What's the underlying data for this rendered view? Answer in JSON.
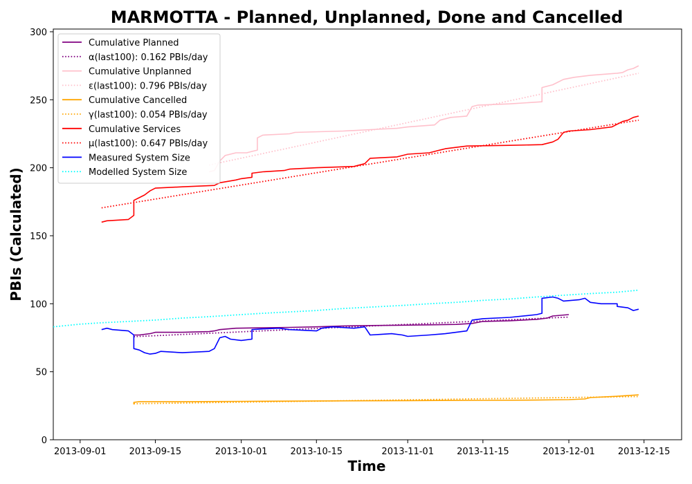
{
  "chart_data": {
    "type": "line",
    "title": "MARMOTTA - Planned, Unplanned, Done  and Cancelled",
    "xlabel": "Time",
    "ylabel": "PBIs (Calculated)",
    "xlim": [
      "2013-08-27",
      "2013-12-22"
    ],
    "ylim": [
      0,
      302
    ],
    "x_ticks": [
      "2013-09-01",
      "2013-09-15",
      "2013-10-01",
      "2013-10-15",
      "2013-11-01",
      "2013-11-15",
      "2013-12-01",
      "2013-12-15"
    ],
    "y_ticks": [
      0,
      50,
      100,
      150,
      200,
      250,
      300
    ],
    "grid": false,
    "legend_position": "upper left",
    "series": [
      {
        "name": "Cumulative Planned",
        "style": "solid",
        "color": "#800080",
        "points": [
          [
            "2013-09-11",
            77
          ],
          [
            "2013-09-12",
            77
          ],
          [
            "2013-09-14",
            78
          ],
          [
            "2013-09-15",
            79
          ],
          [
            "2013-09-20",
            79
          ],
          [
            "2013-09-25",
            79.5
          ],
          [
            "2013-09-26",
            80
          ],
          [
            "2013-09-27",
            81
          ],
          [
            "2013-09-30",
            82
          ],
          [
            "2013-10-05",
            82.3
          ],
          [
            "2013-10-10",
            82.6
          ],
          [
            "2013-10-15",
            83
          ],
          [
            "2013-10-20",
            83.7
          ],
          [
            "2013-10-25",
            84
          ],
          [
            "2013-10-30",
            84.2
          ],
          [
            "2013-11-05",
            84.5
          ],
          [
            "2013-11-10",
            84.8
          ],
          [
            "2013-11-13",
            85.5
          ],
          [
            "2013-11-15",
            87
          ],
          [
            "2013-11-20",
            87.5
          ],
          [
            "2013-11-25",
            88.5
          ],
          [
            "2013-11-27",
            89.5
          ],
          [
            "2013-11-28",
            91
          ],
          [
            "2013-12-01",
            92
          ]
        ]
      },
      {
        "name": "α(last100): 0.162 PBIs/day",
        "style": "dotted",
        "color": "#800080",
        "points": [
          [
            "2013-09-11",
            75.8
          ],
          [
            "2013-12-01",
            90.2
          ]
        ]
      },
      {
        "name": "Cumulative Unplanned",
        "style": "solid",
        "color": "#ffc0cb",
        "points": [
          [
            "2013-09-25",
            197
          ],
          [
            "2013-09-26",
            198
          ],
          [
            "2013-09-27",
            205
          ],
          [
            "2013-09-28",
            209
          ],
          [
            "2013-09-30",
            211
          ],
          [
            "2013-10-02",
            211
          ],
          [
            "2013-10-03",
            212
          ],
          [
            "2013-10-04",
            213
          ],
          [
            "2013-10-04",
            222
          ],
          [
            "2013-10-05",
            224
          ],
          [
            "2013-10-10",
            225
          ],
          [
            "2013-10-11",
            226
          ],
          [
            "2013-10-20",
            227
          ],
          [
            "2013-10-25",
            228
          ],
          [
            "2013-10-30",
            229
          ],
          [
            "2013-11-01",
            230
          ],
          [
            "2013-11-06",
            231.5
          ],
          [
            "2013-11-07",
            235
          ],
          [
            "2013-11-09",
            237
          ],
          [
            "2013-11-12",
            238
          ],
          [
            "2013-11-13",
            245
          ],
          [
            "2013-11-14",
            246
          ],
          [
            "2013-11-20",
            247
          ],
          [
            "2013-11-26",
            248.5
          ],
          [
            "2013-11-26",
            259
          ],
          [
            "2013-11-28",
            261
          ],
          [
            "2013-11-30",
            265
          ],
          [
            "2013-12-02",
            266.5
          ],
          [
            "2013-12-05",
            268
          ],
          [
            "2013-12-10",
            269.5
          ],
          [
            "2013-12-11",
            270
          ],
          [
            "2013-12-12",
            272
          ],
          [
            "2013-12-13",
            273
          ],
          [
            "2013-12-14",
            275
          ]
        ]
      },
      {
        "name": "ε(last100): 0.796 PBIs/day",
        "style": "dotted",
        "color": "#ffc0cb",
        "points": [
          [
            "2013-09-25",
            202
          ],
          [
            "2013-12-14",
            269.5
          ]
        ]
      },
      {
        "name": "Cumulative Cancelled",
        "style": "solid",
        "color": "#ffa500",
        "points": [
          [
            "2013-09-11",
            26
          ],
          [
            "2013-09-11",
            27.5
          ],
          [
            "2013-09-12",
            28
          ],
          [
            "2013-09-20",
            28
          ],
          [
            "2013-10-01",
            28.2
          ],
          [
            "2013-10-15",
            28.5
          ],
          [
            "2013-11-01",
            28.8
          ],
          [
            "2013-11-15",
            29
          ],
          [
            "2013-11-25",
            29.2
          ],
          [
            "2013-12-01",
            29.5
          ],
          [
            "2013-12-04",
            30
          ],
          [
            "2013-12-05",
            31
          ],
          [
            "2013-12-10",
            32
          ],
          [
            "2013-12-14",
            33
          ]
        ]
      },
      {
        "name": "γ(last100): 0.054 PBIs/day",
        "style": "dotted",
        "color": "#ffa500",
        "points": [
          [
            "2013-09-11",
            26.5
          ],
          [
            "2013-12-14",
            31.8
          ]
        ]
      },
      {
        "name": "Cumulative Services",
        "style": "solid",
        "color": "#ff0000",
        "points": [
          [
            "2013-09-05",
            160
          ],
          [
            "2013-09-06",
            161
          ],
          [
            "2013-09-10",
            162
          ],
          [
            "2013-09-11",
            165
          ],
          [
            "2013-09-11",
            176
          ],
          [
            "2013-09-12",
            178
          ],
          [
            "2013-09-13",
            180
          ],
          [
            "2013-09-14",
            183
          ],
          [
            "2013-09-15",
            185
          ],
          [
            "2013-09-20",
            186
          ],
          [
            "2013-09-26",
            187
          ],
          [
            "2013-09-27",
            189
          ],
          [
            "2013-09-30",
            191
          ],
          [
            "2013-10-01",
            192
          ],
          [
            "2013-10-03",
            193
          ],
          [
            "2013-10-03",
            196
          ],
          [
            "2013-10-05",
            197
          ],
          [
            "2013-10-09",
            198
          ],
          [
            "2013-10-10",
            199
          ],
          [
            "2013-10-15",
            200
          ],
          [
            "2013-10-22",
            201
          ],
          [
            "2013-10-24",
            203
          ],
          [
            "2013-10-25",
            207
          ],
          [
            "2013-10-30",
            208
          ],
          [
            "2013-11-01",
            210
          ],
          [
            "2013-11-05",
            211
          ],
          [
            "2013-11-06",
            212
          ],
          [
            "2013-11-08",
            214
          ],
          [
            "2013-11-12",
            216
          ],
          [
            "2013-11-20",
            216.5
          ],
          [
            "2013-11-26",
            217
          ],
          [
            "2013-11-28",
            219
          ],
          [
            "2013-11-29",
            221
          ],
          [
            "2013-11-30",
            226
          ],
          [
            "2013-12-01",
            227
          ],
          [
            "2013-12-05",
            228
          ],
          [
            "2013-12-09",
            230
          ],
          [
            "2013-12-10",
            232
          ],
          [
            "2013-12-11",
            234
          ],
          [
            "2013-12-12",
            235
          ],
          [
            "2013-12-13",
            237
          ],
          [
            "2013-12-14",
            238
          ]
        ]
      },
      {
        "name": "μ(last100): 0.647 PBIs/day",
        "style": "dotted",
        "color": "#ff0000",
        "points": [
          [
            "2013-09-05",
            170.5
          ],
          [
            "2013-12-14",
            235
          ]
        ]
      },
      {
        "name": "Measured System Size",
        "style": "solid",
        "color": "#0000ff",
        "points": [
          [
            "2013-09-05",
            81
          ],
          [
            "2013-09-06",
            82
          ],
          [
            "2013-09-07",
            81
          ],
          [
            "2013-09-10",
            80
          ],
          [
            "2013-09-11",
            77
          ],
          [
            "2013-09-11",
            67
          ],
          [
            "2013-09-12",
            66
          ],
          [
            "2013-09-13",
            64
          ],
          [
            "2013-09-14",
            63
          ],
          [
            "2013-09-15",
            63.5
          ],
          [
            "2013-09-16",
            65
          ],
          [
            "2013-09-20",
            64
          ],
          [
            "2013-09-25",
            65
          ],
          [
            "2013-09-26",
            67
          ],
          [
            "2013-09-27",
            75
          ],
          [
            "2013-09-28",
            76
          ],
          [
            "2013-09-29",
            74
          ],
          [
            "2013-10-01",
            73
          ],
          [
            "2013-10-03",
            74
          ],
          [
            "2013-10-03",
            81
          ],
          [
            "2013-10-05",
            81.5
          ],
          [
            "2013-10-08",
            82
          ],
          [
            "2013-10-10",
            81
          ],
          [
            "2013-10-15",
            80
          ],
          [
            "2013-10-16",
            82
          ],
          [
            "2013-10-18",
            83
          ],
          [
            "2013-10-22",
            82
          ],
          [
            "2013-10-24",
            83
          ],
          [
            "2013-10-25",
            77
          ],
          [
            "2013-10-27",
            77.5
          ],
          [
            "2013-10-29",
            78
          ],
          [
            "2013-10-31",
            77
          ],
          [
            "2013-11-01",
            76
          ],
          [
            "2013-11-05",
            77
          ],
          [
            "2013-11-08",
            78
          ],
          [
            "2013-11-12",
            80
          ],
          [
            "2013-11-13",
            88
          ],
          [
            "2013-11-15",
            89
          ],
          [
            "2013-11-20",
            90
          ],
          [
            "2013-11-25",
            92
          ],
          [
            "2013-11-26",
            93
          ],
          [
            "2013-11-26",
            104
          ],
          [
            "2013-11-28",
            105
          ],
          [
            "2013-11-29",
            104
          ],
          [
            "2013-11-30",
            102
          ],
          [
            "2013-12-03",
            103
          ],
          [
            "2013-12-04",
            104
          ],
          [
            "2013-12-05",
            101
          ],
          [
            "2013-12-07",
            100
          ],
          [
            "2013-12-10",
            100
          ],
          [
            "2013-12-10",
            98
          ],
          [
            "2013-12-12",
            97
          ],
          [
            "2013-12-13",
            95
          ],
          [
            "2013-12-14",
            96
          ]
        ]
      },
      {
        "name": "Modelled System Size",
        "style": "dotted",
        "color": "#00ffff",
        "points": [
          [
            "2013-08-27",
            83
          ],
          [
            "2013-09-01",
            85
          ],
          [
            "2013-09-05",
            86
          ],
          [
            "2013-09-10",
            87
          ],
          [
            "2013-09-15",
            88
          ],
          [
            "2013-09-20",
            89.5
          ],
          [
            "2013-09-25",
            90.5
          ],
          [
            "2013-10-01",
            92
          ],
          [
            "2013-10-05",
            93
          ],
          [
            "2013-10-10",
            94
          ],
          [
            "2013-10-15",
            95
          ],
          [
            "2013-10-20",
            96.5
          ],
          [
            "2013-10-25",
            97.5
          ],
          [
            "2013-11-01",
            99
          ],
          [
            "2013-11-05",
            100
          ],
          [
            "2013-11-10",
            101
          ],
          [
            "2013-11-15",
            102.5
          ],
          [
            "2013-11-20",
            103.5
          ],
          [
            "2013-11-25",
            105
          ],
          [
            "2013-12-01",
            106.5
          ],
          [
            "2013-12-05",
            107.5
          ],
          [
            "2013-12-10",
            108.5
          ],
          [
            "2013-12-14",
            110
          ]
        ]
      }
    ]
  }
}
